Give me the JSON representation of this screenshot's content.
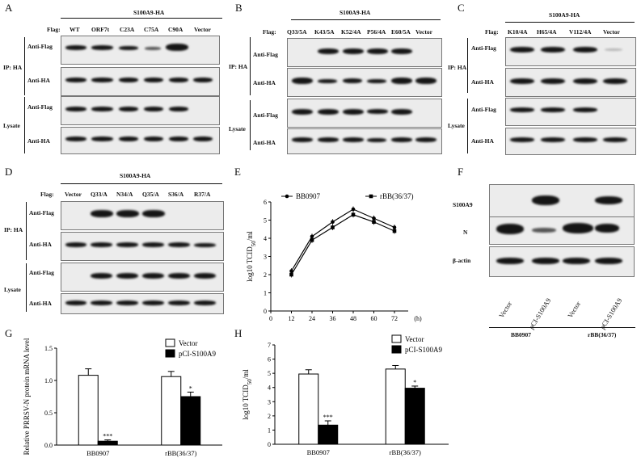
{
  "panels": {
    "A": {
      "letter": "A",
      "construct": "S100A9-HA",
      "flag_label": "Flag:",
      "lanes": [
        "WT",
        "ORF7t",
        "C23A",
        "C75A",
        "C90A",
        "Vector"
      ],
      "group_ip": "IP: HA",
      "group_lysate": "Lysate",
      "rows": [
        "Anti-Flag",
        "Anti-HA",
        "Anti-Flag",
        "Anti-HA"
      ]
    },
    "B": {
      "letter": "B",
      "construct": "S100A9-HA",
      "flag_label": "Flag:",
      "lanes": [
        "Q33/5A",
        "K43/5A",
        "K52/4A",
        "P56/4A",
        "E60/5A",
        "Vector"
      ],
      "group_ip": "IP: HA",
      "group_lysate": "Lysate",
      "rows": [
        "Anti-Flag",
        "Anti-HA",
        "Anti-Flag",
        "Anti-HA"
      ]
    },
    "C": {
      "letter": "C",
      "construct": "S100A9-HA",
      "flag_label": "Flag:",
      "lanes": [
        "K10/4A",
        "H65/4A",
        "V112/4A",
        "Vector"
      ],
      "group_ip": "IP: HA",
      "group_lysate": "Lysate",
      "rows": [
        "Anti-Flag",
        "Anti-HA",
        "Anti-Flag",
        "Anti-HA"
      ]
    },
    "D": {
      "letter": "D",
      "construct": "S100A9-HA",
      "flag_label": "Flag:",
      "lanes": [
        "Vector",
        "Q33/A",
        "N34/A",
        "Q35/A",
        "S36/A",
        "R37/A"
      ],
      "group_ip": "IP: HA",
      "group_lysate": "Lysate",
      "rows": [
        "Anti-Flag",
        "Anti-HA",
        "Anti-Flag",
        "Anti-HA"
      ]
    },
    "E": {
      "letter": "E"
    },
    "F": {
      "letter": "F",
      "rows": [
        "S100A9",
        "N",
        "β-actin"
      ],
      "lanes": [
        "Vector",
        "pCI-S100A9",
        "Vector",
        "pCI-S100A9"
      ],
      "groups": [
        "BB0907",
        "rBB(36/37)"
      ]
    },
    "G": {
      "letter": "G"
    },
    "H": {
      "letter": "H"
    }
  },
  "chart_data": [
    {
      "panel": "E",
      "type": "line",
      "xlabel": "(h)",
      "ylabel": "log10 TCID50/ml",
      "x": [
        12,
        24,
        36,
        48,
        60,
        72
      ],
      "xlim": [
        0,
        80
      ],
      "ylim": [
        0,
        6
      ],
      "xticks": [
        "0",
        "12",
        "24",
        "36",
        "48",
        "60",
        "72"
      ],
      "yticks": [
        "0",
        "1",
        "2",
        "3",
        "4",
        "5",
        "6"
      ],
      "series": [
        {
          "name": "BB0907",
          "values": [
            2.2,
            4.1,
            4.9,
            5.6,
            5.1,
            4.6
          ],
          "marker": "circle"
        },
        {
          "name": "rBB(36/37)",
          "values": [
            2.0,
            3.9,
            4.6,
            5.3,
            4.9,
            4.4
          ],
          "marker": "square"
        }
      ],
      "legend": "top"
    },
    {
      "panel": "G",
      "type": "bar",
      "ylabel": "Relative PRRSV-N protein mRNA level",
      "categories": [
        "BB0907",
        "rBB(36/37)"
      ],
      "ylim": [
        0,
        1.5
      ],
      "yticks": [
        "0.0",
        "0.5",
        "1.0",
        "1.5"
      ],
      "series": [
        {
          "name": "Vector",
          "values": [
            1.08,
            1.06
          ],
          "errors": [
            0.1,
            0.08
          ],
          "color": "#ffffff"
        },
        {
          "name": "pCI-S100A9",
          "values": [
            0.06,
            0.75
          ],
          "errors": [
            0.02,
            0.07
          ],
          "color": "#000000"
        }
      ],
      "significance": [
        "***",
        "*"
      ],
      "legend": "top-right"
    },
    {
      "panel": "H",
      "type": "bar",
      "ylabel": "log10 TCID50/ml",
      "categories": [
        "BB0907",
        "rBB(36/37)"
      ],
      "ylim": [
        0,
        7
      ],
      "yticks": [
        "0",
        "1",
        "2",
        "3",
        "4",
        "5",
        "6",
        "7"
      ],
      "series": [
        {
          "name": "Vector",
          "values": [
            4.95,
            5.3
          ],
          "errors": [
            0.3,
            0.25
          ],
          "color": "#ffffff"
        },
        {
          "name": "pCI-S100A9",
          "values": [
            1.35,
            3.95
          ],
          "errors": [
            0.3,
            0.15
          ],
          "color": "#000000"
        }
      ],
      "significance": [
        "***",
        "*"
      ],
      "legend": "top-right"
    }
  ]
}
